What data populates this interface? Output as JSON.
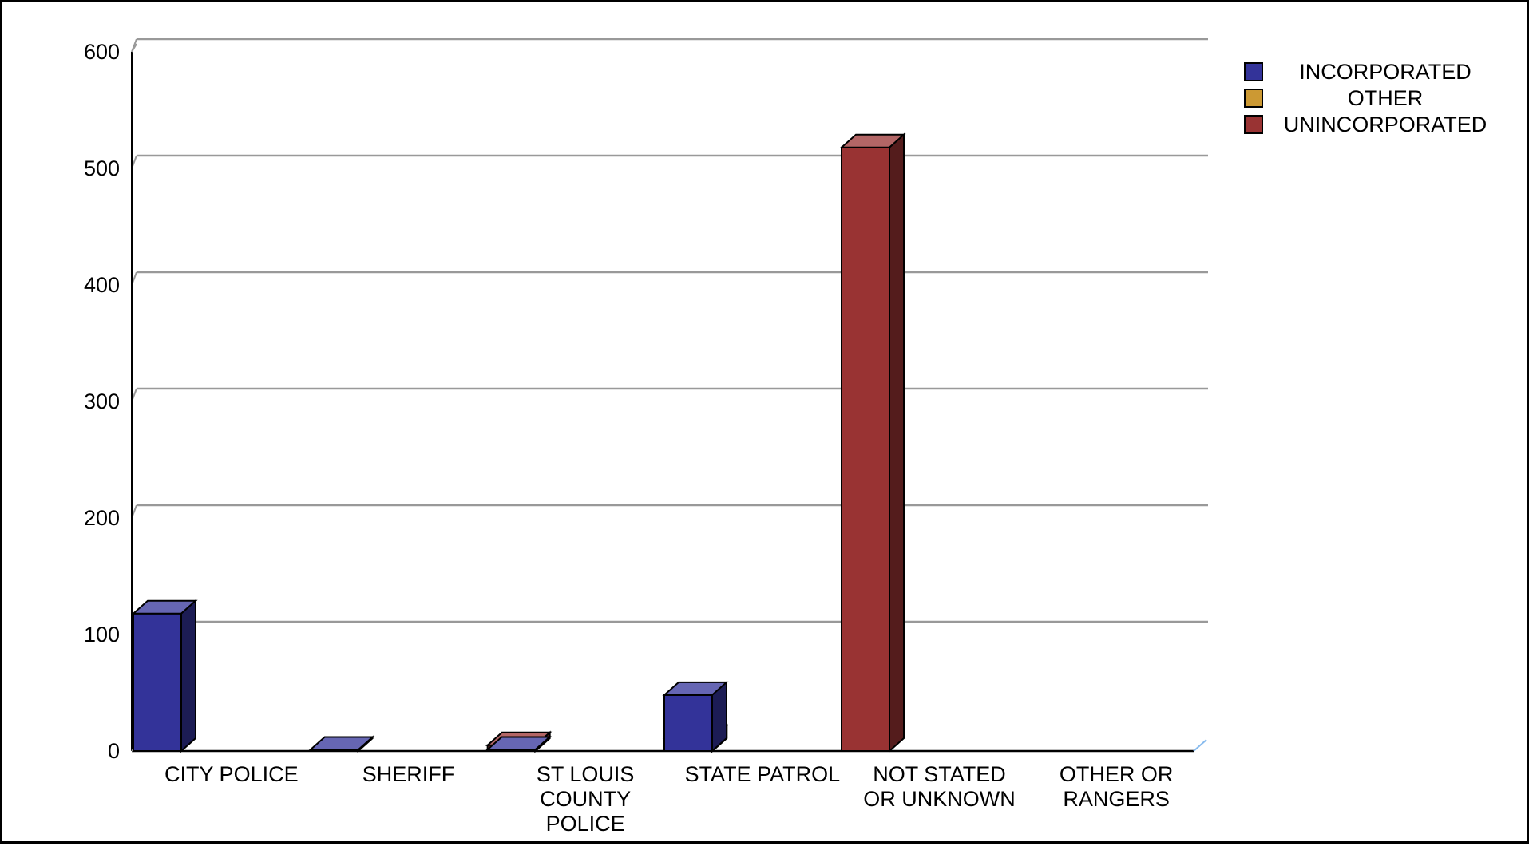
{
  "chart_data": {
    "type": "bar",
    "categories": [
      [
        "CITY POLICE"
      ],
      [
        "SHERIFF"
      ],
      [
        "ST LOUIS",
        "COUNTY",
        "POLICE"
      ],
      [
        "STATE PATROL"
      ],
      [
        "NOT STATED",
        "OR UNKNOWN"
      ],
      [
        "OTHER OR",
        "RANGERS"
      ]
    ],
    "series": [
      {
        "name": "INCORPORATED",
        "color": "#333399",
        "values": [
          118,
          1,
          1,
          48,
          0,
          0
        ]
      },
      {
        "name": "OTHER",
        "color": "#CC9933",
        "values": [
          0,
          0,
          0,
          0,
          0,
          0
        ]
      },
      {
        "name": "UNINCORPORATED",
        "color": "#993333",
        "values": [
          0,
          5,
          11,
          518,
          0,
          0
        ]
      }
    ],
    "y_ticks": [
      "0",
      "100",
      "200",
      "300",
      "400",
      "500",
      "600"
    ],
    "ylim": [
      0,
      600
    ],
    "grid": true,
    "legend_position": "top-right",
    "title": "",
    "xlabel": "",
    "ylabel": ""
  }
}
